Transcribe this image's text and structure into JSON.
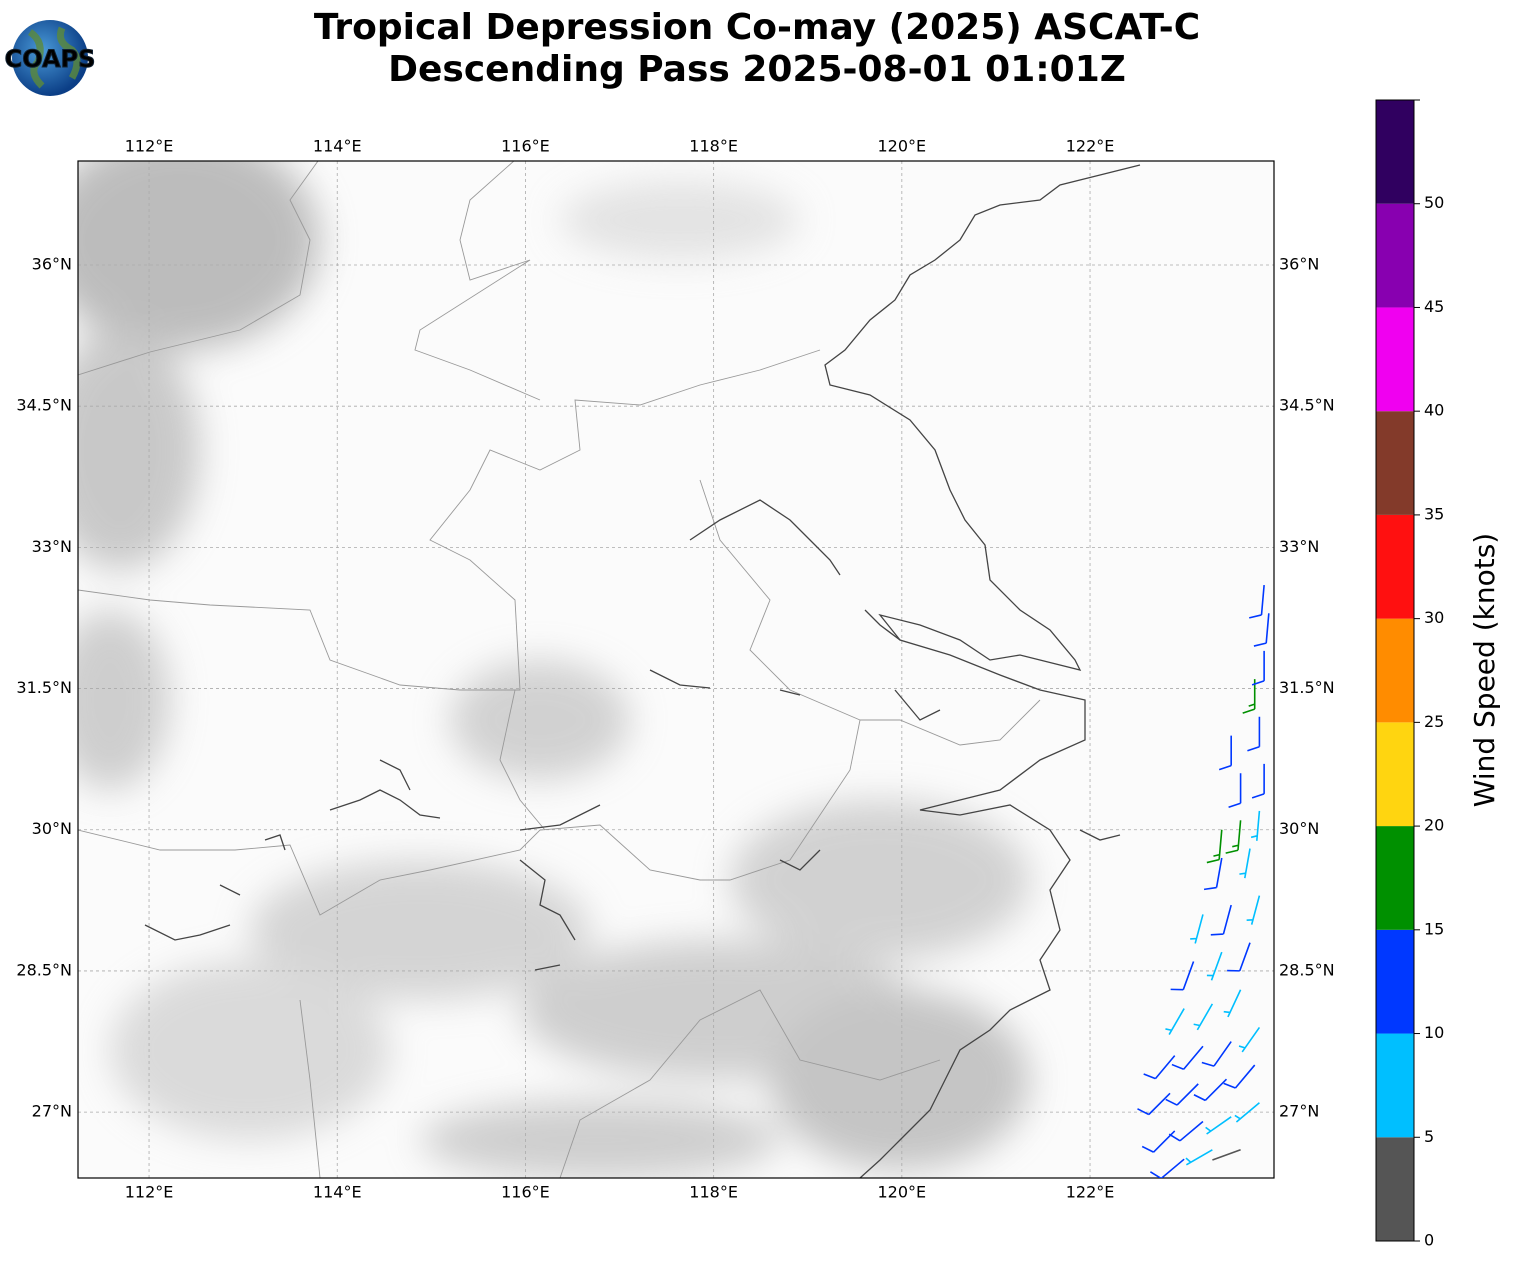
{
  "logo": {
    "text": "COAPS"
  },
  "title": {
    "line1": "Tropical Depression Co-may (2025) ASCAT-C",
    "line2": "Descending Pass 2025-08-01 01:01Z"
  },
  "map": {
    "xlim": [
      111.245,
      123.955
    ],
    "ylim": [
      26.3,
      37.105
    ],
    "xticks": [
      {
        "value": 112,
        "label": "112°E"
      },
      {
        "value": 114,
        "label": "114°E"
      },
      {
        "value": 116,
        "label": "116°E"
      },
      {
        "value": 118,
        "label": "118°E"
      },
      {
        "value": 120,
        "label": "120°E"
      },
      {
        "value": 122,
        "label": "122°E"
      }
    ],
    "yticks": [
      {
        "value": 27,
        "label": "27°N"
      },
      {
        "value": 28.5,
        "label": "28.5°N"
      },
      {
        "value": 30,
        "label": "30°N"
      },
      {
        "value": 31.5,
        "label": "31.5°N"
      },
      {
        "value": 33,
        "label": "33°N"
      },
      {
        "value": 34.5,
        "label": "34.5°N"
      },
      {
        "value": 36,
        "label": "36°N"
      }
    ],
    "grid": true
  },
  "wind_barbs": [
    {
      "lon": 123.0,
      "lat": 26.5,
      "speed": 12,
      "direction": 230
    },
    {
      "lon": 123.3,
      "lat": 26.6,
      "speed": 8,
      "direction": 240
    },
    {
      "lon": 123.6,
      "lat": 26.6,
      "speed": 4,
      "direction": 250
    },
    {
      "lon": 122.9,
      "lat": 26.8,
      "speed": 12,
      "direction": 225
    },
    {
      "lon": 123.2,
      "lat": 26.9,
      "speed": 11,
      "direction": 230
    },
    {
      "lon": 123.5,
      "lat": 26.95,
      "speed": 9,
      "direction": 235
    },
    {
      "lon": 123.8,
      "lat": 27.1,
      "speed": 8,
      "direction": 230
    },
    {
      "lon": 122.85,
      "lat": 27.2,
      "speed": 13,
      "direction": 225
    },
    {
      "lon": 123.15,
      "lat": 27.3,
      "speed": 12,
      "direction": 225
    },
    {
      "lon": 123.45,
      "lat": 27.35,
      "speed": 11,
      "direction": 225
    },
    {
      "lon": 123.75,
      "lat": 27.5,
      "speed": 12,
      "direction": 220
    },
    {
      "lon": 122.9,
      "lat": 27.6,
      "speed": 12,
      "direction": 220
    },
    {
      "lon": 123.2,
      "lat": 27.7,
      "speed": 12,
      "direction": 220
    },
    {
      "lon": 123.5,
      "lat": 27.75,
      "speed": 10,
      "direction": 215
    },
    {
      "lon": 123.8,
      "lat": 27.9,
      "speed": 9,
      "direction": 215
    },
    {
      "lon": 123.0,
      "lat": 28.1,
      "speed": 9,
      "direction": 210
    },
    {
      "lon": 123.3,
      "lat": 28.15,
      "speed": 8,
      "direction": 210
    },
    {
      "lon": 123.6,
      "lat": 28.3,
      "speed": 8,
      "direction": 205
    },
    {
      "lon": 123.1,
      "lat": 28.6,
      "speed": 12,
      "direction": 200
    },
    {
      "lon": 123.4,
      "lat": 28.7,
      "speed": 9,
      "direction": 200
    },
    {
      "lon": 123.7,
      "lat": 28.8,
      "speed": 12,
      "direction": 200
    },
    {
      "lon": 123.2,
      "lat": 29.1,
      "speed": 8,
      "direction": 195
    },
    {
      "lon": 123.5,
      "lat": 29.2,
      "speed": 11,
      "direction": 195
    },
    {
      "lon": 123.8,
      "lat": 29.3,
      "speed": 7,
      "direction": 195
    },
    {
      "lon": 123.4,
      "lat": 29.7,
      "speed": 12,
      "direction": 190
    },
    {
      "lon": 123.7,
      "lat": 29.8,
      "speed": 8,
      "direction": 190
    },
    {
      "lon": 123.4,
      "lat": 30.0,
      "speed": 17,
      "direction": 185
    },
    {
      "lon": 123.6,
      "lat": 30.1,
      "speed": 17,
      "direction": 185
    },
    {
      "lon": 123.8,
      "lat": 30.2,
      "speed": 8,
      "direction": 185
    },
    {
      "lon": 123.6,
      "lat": 30.6,
      "speed": 12,
      "direction": 180
    },
    {
      "lon": 123.85,
      "lat": 30.7,
      "speed": 12,
      "direction": 180
    },
    {
      "lon": 123.5,
      "lat": 31.0,
      "speed": 10,
      "direction": 180
    },
    {
      "lon": 123.8,
      "lat": 31.2,
      "speed": 13,
      "direction": 180
    },
    {
      "lon": 123.75,
      "lat": 31.6,
      "speed": 17,
      "direction": 180
    },
    {
      "lon": 123.85,
      "lat": 31.9,
      "speed": 12,
      "direction": 180
    },
    {
      "lon": 123.9,
      "lat": 32.3,
      "speed": 12,
      "direction": 185
    },
    {
      "lon": 123.85,
      "lat": 32.6,
      "speed": 10,
      "direction": 185
    }
  ],
  "colorbar": {
    "label": "Wind Speed (knots)",
    "clim": [
      0,
      55
    ],
    "bounds": [
      0,
      5,
      10,
      15,
      20,
      25,
      30,
      35,
      40,
      45,
      50,
      55
    ],
    "colors": [
      "#555555",
      "#00bfff",
      "#0038ff",
      "#009000",
      "#ffd510",
      "#ff8c00",
      "#ff1010",
      "#833a2a",
      "#f000f0",
      "#8800b0",
      "#300060"
    ],
    "ticks": [
      0,
      5,
      10,
      15,
      20,
      25,
      30,
      35,
      40,
      45,
      50
    ]
  }
}
